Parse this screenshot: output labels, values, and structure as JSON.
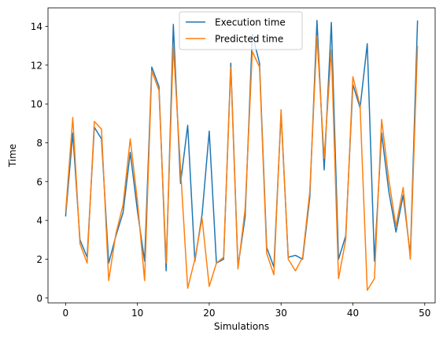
{
  "chart_data": {
    "type": "line",
    "title": "",
    "xlabel": "Simulations",
    "ylabel": "Time",
    "xlim": [
      -2.45,
      51.45
    ],
    "ylim": [
      -0.25,
      14.95
    ],
    "xticks": [
      0,
      10,
      20,
      30,
      40,
      50
    ],
    "yticks": [
      0,
      2,
      4,
      6,
      8,
      10,
      12,
      14
    ],
    "grid": false,
    "legend_position": "top-center",
    "x": [
      0,
      1,
      2,
      3,
      4,
      5,
      6,
      7,
      8,
      9,
      10,
      11,
      12,
      13,
      14,
      15,
      16,
      17,
      18,
      19,
      20,
      21,
      22,
      23,
      24,
      25,
      26,
      27,
      28,
      29,
      30,
      31,
      32,
      33,
      34,
      35,
      36,
      37,
      38,
      39,
      40,
      41,
      42,
      43,
      44,
      45,
      46,
      47,
      48,
      49
    ],
    "series": [
      {
        "name": "Execution time",
        "color": "#1f77b4",
        "values": [
          4.2,
          8.5,
          3.0,
          2.1,
          8.8,
          8.2,
          1.8,
          3.2,
          4.4,
          7.5,
          4.5,
          1.9,
          11.9,
          10.9,
          1.4,
          14.1,
          5.9,
          8.9,
          1.9,
          4.3,
          8.6,
          1.8,
          2.0,
          12.1,
          1.6,
          4.2,
          13.6,
          12.1,
          2.6,
          1.6,
          9.5,
          2.1,
          2.2,
          2.0,
          5.2,
          14.3,
          6.6,
          14.2,
          2.0,
          3.2,
          11.0,
          9.8,
          13.1,
          1.9,
          8.5,
          5.5,
          3.4,
          5.3,
          2.2,
          14.3
        ]
      },
      {
        "name": "Predicted time",
        "color": "#ff7f0e",
        "values": [
          4.4,
          9.3,
          2.8,
          1.8,
          9.1,
          8.7,
          0.9,
          3.3,
          4.8,
          8.2,
          5.0,
          0.9,
          11.7,
          10.7,
          1.8,
          13.0,
          6.7,
          0.5,
          2.0,
          4.1,
          0.6,
          1.8,
          2.1,
          11.9,
          1.5,
          4.6,
          12.7,
          11.9,
          2.3,
          1.2,
          9.7,
          2.0,
          1.4,
          2.1,
          5.5,
          13.5,
          7.2,
          12.8,
          1.0,
          3.0,
          11.4,
          9.9,
          0.4,
          1.0,
          9.2,
          6.1,
          3.7,
          5.7,
          2.0,
          13.0
        ]
      }
    ]
  }
}
